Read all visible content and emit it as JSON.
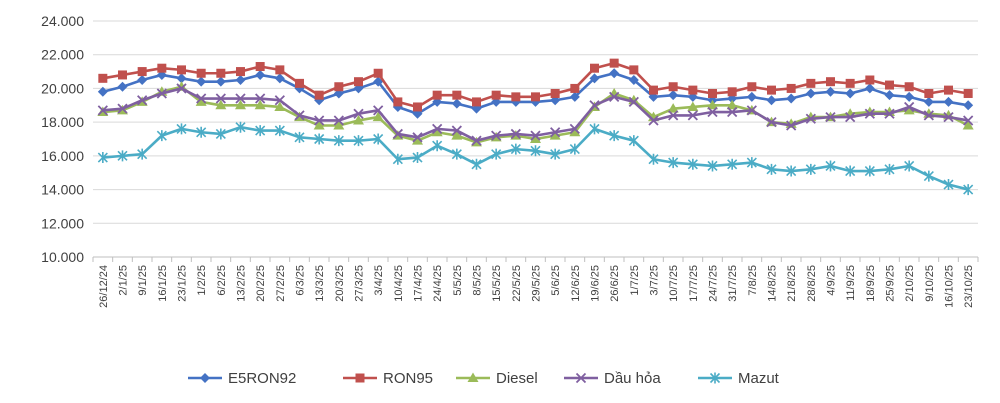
{
  "chart_data": {
    "type": "line",
    "title": "",
    "xlabel": "",
    "ylabel": "",
    "ylim": [
      10000,
      24000
    ],
    "ytick_step": 2000,
    "y_ticks": [
      "10.000",
      "12.000",
      "14.000",
      "16.000",
      "18.000",
      "20.000",
      "22.000",
      "24.000"
    ],
    "grid": "horizontal",
    "legend_position": "bottom",
    "x": [
      "26/12/24",
      "2/1/25",
      "9/1/25",
      "16/1/25",
      "23/1/25",
      "1/2/25",
      "6/2/25",
      "13/2/25",
      "20/2/25",
      "27/2/25",
      "6/3/25",
      "13/3/25",
      "20/3/25",
      "27/3/25",
      "3/4/25",
      "10/4/25",
      "17/4/25",
      "24/4/25",
      "5/5/25",
      "8/5/25",
      "15/5/25",
      "22/5/25",
      "29/5/25",
      "5/6/25",
      "12/6/25",
      "19/6/25",
      "26/6/25",
      "1/7/25",
      "3/7/25",
      "10/7/25",
      "17/7/25",
      "24/7/25",
      "31/7/25",
      "7/8/25",
      "14/8/25",
      "21/8/25",
      "28/8/25",
      "4/9/25",
      "11/9/25",
      "18/9/25",
      "25/9/25",
      "2/10/25",
      "9/10/25",
      "16/10/25",
      "23/10/25"
    ],
    "series": [
      {
        "name": "E5RON92",
        "color": "#4472C4",
        "marker": "diamond",
        "values": [
          19800,
          20100,
          20500,
          20800,
          20600,
          20400,
          20400,
          20500,
          20800,
          20600,
          20000,
          19300,
          19700,
          20000,
          20400,
          18900,
          18500,
          19200,
          19100,
          18800,
          19200,
          19200,
          19200,
          19300,
          19500,
          20600,
          20900,
          20500,
          19500,
          19600,
          19500,
          19300,
          19400,
          19500,
          19300,
          19400,
          19700,
          19800,
          19700,
          20000,
          19600,
          19500,
          19200,
          19200,
          19000
        ]
      },
      {
        "name": "RON95",
        "color": "#C0504D",
        "marker": "square",
        "values": [
          20600,
          20800,
          21000,
          21200,
          21100,
          20900,
          20900,
          21000,
          21300,
          21100,
          20300,
          19600,
          20100,
          20400,
          20900,
          19200,
          18900,
          19600,
          19600,
          19200,
          19600,
          19500,
          19500,
          19700,
          20000,
          21200,
          21500,
          21100,
          19900,
          20100,
          19900,
          19700,
          19800,
          20100,
          19900,
          20000,
          20300,
          20400,
          20300,
          20500,
          20200,
          20100,
          19700,
          19900,
          19700
        ]
      },
      {
        "name": "Diesel",
        "color": "#9BBB59",
        "marker": "triangle",
        "values": [
          18600,
          18700,
          19200,
          19800,
          20100,
          19200,
          19000,
          19000,
          19000,
          18900,
          18300,
          17800,
          17800,
          18100,
          18300,
          17200,
          16900,
          17400,
          17200,
          16800,
          17100,
          17200,
          17000,
          17200,
          17400,
          18900,
          19700,
          19300,
          18300,
          18800,
          18900,
          19000,
          19000,
          18700,
          18000,
          17900,
          18300,
          18300,
          18500,
          18600,
          18600,
          18700,
          18500,
          18400,
          17800
        ]
      },
      {
        "name": "Dầu hỏa",
        "color": "#7F5FA0",
        "marker": "x",
        "values": [
          18700,
          18800,
          19300,
          19700,
          20000,
          19400,
          19400,
          19400,
          19400,
          19300,
          18400,
          18100,
          18100,
          18500,
          18700,
          17300,
          17100,
          17600,
          17500,
          16900,
          17200,
          17300,
          17200,
          17400,
          17600,
          19000,
          19500,
          19200,
          18100,
          18400,
          18400,
          18600,
          18600,
          18700,
          18000,
          17800,
          18200,
          18300,
          18300,
          18500,
          18500,
          18900,
          18400,
          18300,
          18100
        ]
      },
      {
        "name": "Mazut",
        "color": "#4BACC6",
        "marker": "star",
        "values": [
          15900,
          16000,
          16100,
          17200,
          17600,
          17400,
          17300,
          17700,
          17500,
          17500,
          17100,
          17000,
          16900,
          16900,
          17000,
          15800,
          15900,
          16600,
          16100,
          15500,
          16100,
          16400,
          16300,
          16100,
          16400,
          17600,
          17200,
          16900,
          15800,
          15600,
          15500,
          15400,
          15500,
          15600,
          15200,
          15100,
          15200,
          15400,
          15100,
          15100,
          15200,
          15400,
          14800,
          14300,
          14000
        ]
      }
    ]
  }
}
